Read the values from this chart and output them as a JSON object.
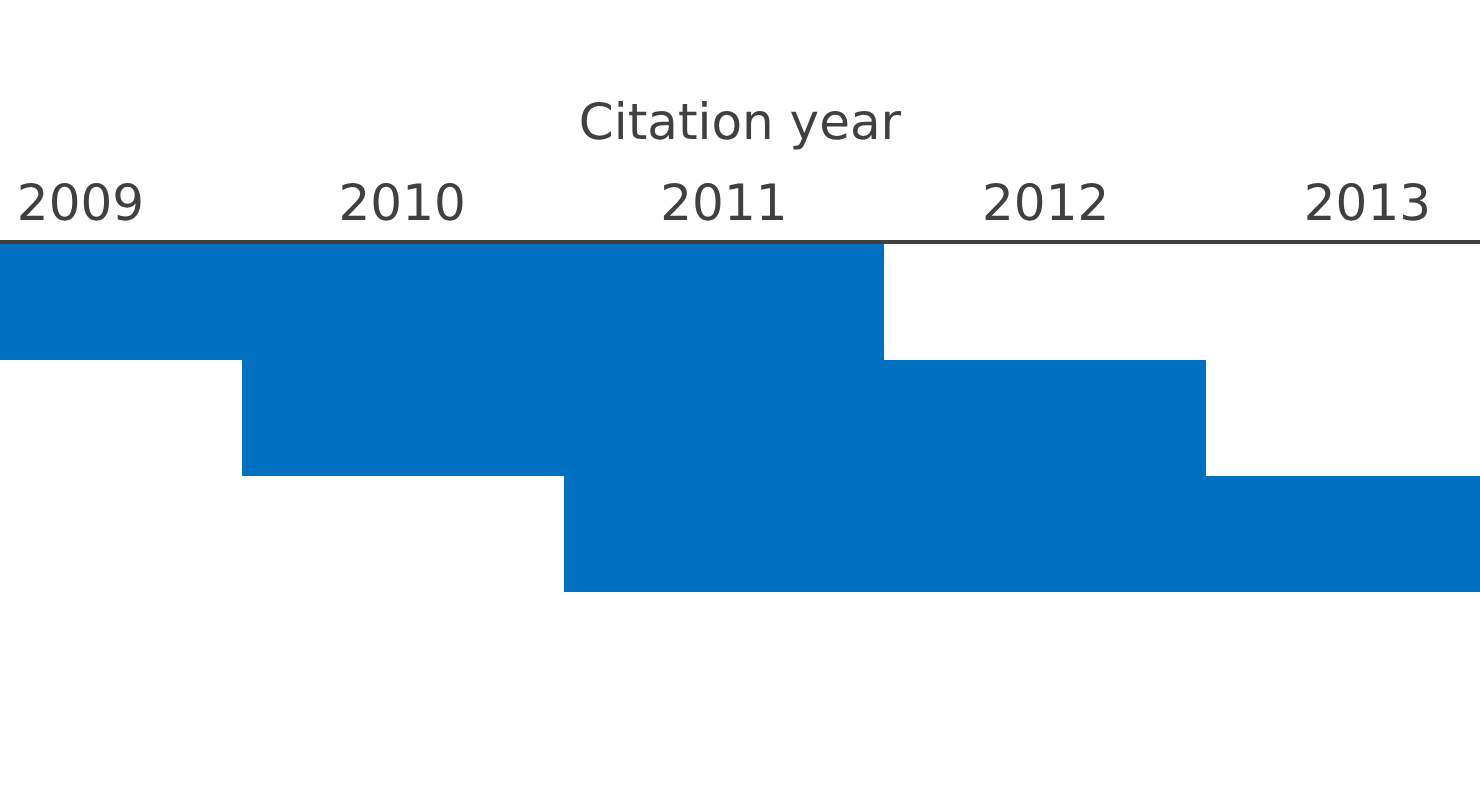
{
  "chart_data": {
    "type": "bar",
    "orientation": "horizontal",
    "xlabel": "Citation year",
    "categories": [
      null,
      null,
      null
    ],
    "values": [
      2.75,
      3,
      2.85
    ],
    "base": [
      2008.75,
      2009.5,
      2010.5
    ],
    "color": "#0070c0",
    "xlim": [
      2008.75,
      2013.35
    ],
    "xticks": [
      2009,
      2010,
      2011,
      2012,
      2013
    ],
    "legend": false
  }
}
